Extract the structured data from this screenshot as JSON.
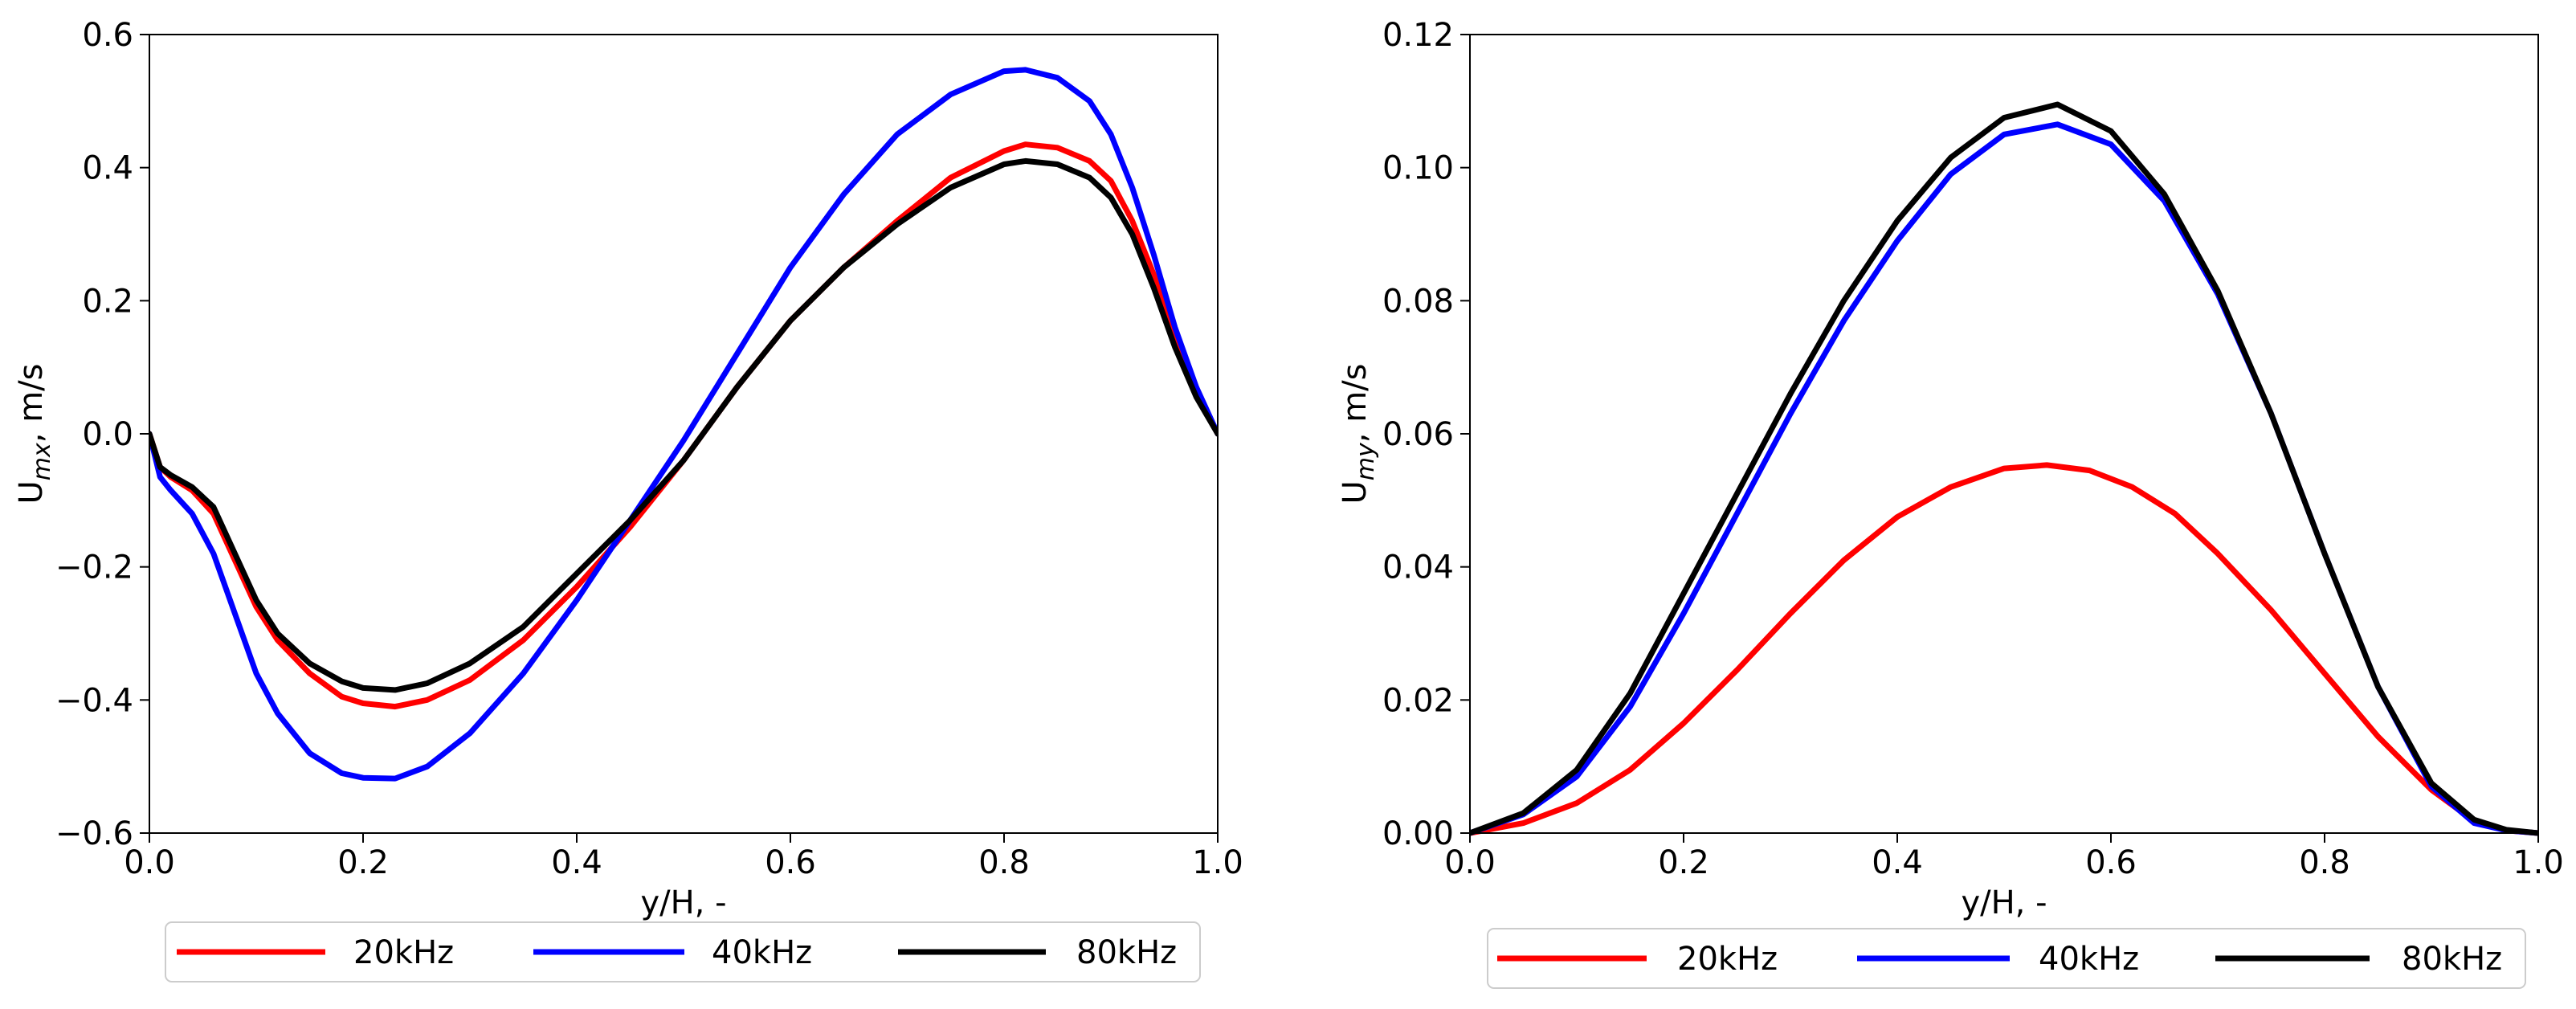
{
  "colors": {
    "20kHz": "#ff0000",
    "40kHz": "#0000ff",
    "80kHz": "#000000"
  },
  "chart_data": [
    {
      "type": "line",
      "xlabel": "y/H, -",
      "ylabel_main": "U",
      "ylabel_sub": "mx",
      "ylabel_rest": ", m/s",
      "xlim": [
        0.0,
        1.0
      ],
      "ylim": [
        -0.6,
        0.6
      ],
      "xticks": [
        0.0,
        0.2,
        0.4,
        0.6,
        0.8,
        1.0
      ],
      "xtick_labels": [
        "0.0",
        "0.2",
        "0.4",
        "0.6",
        "0.8",
        "1.0"
      ],
      "yticks": [
        -0.6,
        -0.4,
        -0.2,
        0.0,
        0.2,
        0.4,
        0.6
      ],
      "ytick_labels": [
        "−0.6",
        "−0.4",
        "−0.2",
        "0.0",
        "0.2",
        "0.4",
        "0.6"
      ],
      "legend": [
        "20kHz",
        "40kHz",
        "80kHz"
      ],
      "series": [
        {
          "name": "20kHz",
          "color": "#ff0000",
          "x": [
            0,
            0.01,
            0.02,
            0.04,
            0.06,
            0.08,
            0.1,
            0.12,
            0.15,
            0.18,
            0.2,
            0.23,
            0.26,
            0.3,
            0.35,
            0.4,
            0.45,
            0.5,
            0.55,
            0.6,
            0.65,
            0.7,
            0.75,
            0.8,
            0.82,
            0.85,
            0.88,
            0.9,
            0.92,
            0.94,
            0.96,
            0.98,
            1.0
          ],
          "y": [
            0,
            -0.05,
            -0.065,
            -0.085,
            -0.12,
            -0.19,
            -0.26,
            -0.31,
            -0.36,
            -0.395,
            -0.405,
            -0.41,
            -0.4,
            -0.37,
            -0.31,
            -0.23,
            -0.14,
            -0.04,
            0.07,
            0.17,
            0.25,
            0.32,
            0.385,
            0.425,
            0.435,
            0.43,
            0.41,
            0.38,
            0.32,
            0.24,
            0.14,
            0.06,
            0
          ]
        },
        {
          "name": "40kHz",
          "color": "#0000ff",
          "x": [
            0,
            0.01,
            0.02,
            0.04,
            0.06,
            0.08,
            0.1,
            0.12,
            0.15,
            0.18,
            0.2,
            0.23,
            0.26,
            0.3,
            0.35,
            0.4,
            0.45,
            0.5,
            0.55,
            0.6,
            0.65,
            0.7,
            0.75,
            0.8,
            0.82,
            0.85,
            0.88,
            0.9,
            0.92,
            0.94,
            0.96,
            0.98,
            1.0
          ],
          "y": [
            0,
            -0.065,
            -0.085,
            -0.12,
            -0.18,
            -0.27,
            -0.36,
            -0.42,
            -0.48,
            -0.51,
            -0.517,
            -0.518,
            -0.5,
            -0.45,
            -0.36,
            -0.25,
            -0.13,
            -0.01,
            0.12,
            0.25,
            0.36,
            0.45,
            0.51,
            0.545,
            0.547,
            0.535,
            0.5,
            0.45,
            0.37,
            0.27,
            0.16,
            0.07,
            0
          ]
        },
        {
          "name": "80kHz",
          "color": "#000000",
          "x": [
            0,
            0.01,
            0.02,
            0.04,
            0.06,
            0.08,
            0.1,
            0.12,
            0.15,
            0.18,
            0.2,
            0.23,
            0.26,
            0.3,
            0.35,
            0.4,
            0.45,
            0.5,
            0.55,
            0.6,
            0.65,
            0.7,
            0.75,
            0.8,
            0.82,
            0.85,
            0.88,
            0.9,
            0.92,
            0.94,
            0.96,
            0.98,
            1.0
          ],
          "y": [
            0,
            -0.05,
            -0.062,
            -0.08,
            -0.11,
            -0.18,
            -0.25,
            -0.3,
            -0.345,
            -0.372,
            -0.382,
            -0.385,
            -0.375,
            -0.345,
            -0.29,
            -0.21,
            -0.13,
            -0.04,
            0.07,
            0.17,
            0.25,
            0.315,
            0.37,
            0.405,
            0.41,
            0.405,
            0.385,
            0.355,
            0.3,
            0.22,
            0.13,
            0.055,
            0
          ]
        }
      ]
    },
    {
      "type": "line",
      "xlabel": "y/H, -",
      "ylabel_main": "U",
      "ylabel_sub": "my",
      "ylabel_rest": ", m/s",
      "xlim": [
        0.0,
        1.0
      ],
      "ylim": [
        0.0,
        0.12
      ],
      "xticks": [
        0.0,
        0.2,
        0.4,
        0.6,
        0.8,
        1.0
      ],
      "xtick_labels": [
        "0.0",
        "0.2",
        "0.4",
        "0.6",
        "0.8",
        "1.0"
      ],
      "yticks": [
        0.0,
        0.02,
        0.04,
        0.06,
        0.08,
        0.1,
        0.12
      ],
      "ytick_labels": [
        "0.00",
        "0.02",
        "0.04",
        "0.06",
        "0.08",
        "0.10",
        "0.12"
      ],
      "legend": [
        "20kHz",
        "40kHz",
        "80kHz"
      ],
      "series": [
        {
          "name": "20kHz",
          "color": "#ff0000",
          "x": [
            0,
            0.05,
            0.1,
            0.15,
            0.2,
            0.25,
            0.3,
            0.35,
            0.4,
            0.45,
            0.5,
            0.54,
            0.58,
            0.62,
            0.66,
            0.7,
            0.75,
            0.8,
            0.85,
            0.9,
            0.94,
            0.97,
            1.0
          ],
          "y": [
            0,
            0.0015,
            0.0045,
            0.0095,
            0.0165,
            0.0245,
            0.033,
            0.041,
            0.0475,
            0.052,
            0.0548,
            0.0553,
            0.0545,
            0.052,
            0.048,
            0.042,
            0.0335,
            0.024,
            0.0145,
            0.0065,
            0.0018,
            0.0004,
            0
          ]
        },
        {
          "name": "40kHz",
          "color": "#0000ff",
          "x": [
            0,
            0.05,
            0.1,
            0.15,
            0.2,
            0.25,
            0.3,
            0.35,
            0.4,
            0.45,
            0.5,
            0.55,
            0.6,
            0.65,
            0.7,
            0.75,
            0.8,
            0.85,
            0.9,
            0.94,
            0.97,
            1.0
          ],
          "y": [
            0,
            0.0028,
            0.0085,
            0.019,
            0.033,
            0.048,
            0.063,
            0.077,
            0.089,
            0.099,
            0.105,
            0.1065,
            0.1035,
            0.095,
            0.081,
            0.063,
            0.042,
            0.022,
            0.007,
            0.0015,
            0.0004,
            0
          ]
        },
        {
          "name": "80kHz",
          "color": "#000000",
          "x": [
            0,
            0.05,
            0.1,
            0.15,
            0.2,
            0.25,
            0.3,
            0.35,
            0.4,
            0.45,
            0.5,
            0.55,
            0.6,
            0.65,
            0.7,
            0.75,
            0.8,
            0.85,
            0.9,
            0.94,
            0.97,
            1.0
          ],
          "y": [
            0,
            0.003,
            0.0095,
            0.021,
            0.036,
            0.051,
            0.066,
            0.08,
            0.092,
            0.1015,
            0.1075,
            0.1095,
            0.1055,
            0.096,
            0.0815,
            0.063,
            0.042,
            0.022,
            0.0075,
            0.002,
            0.0005,
            0
          ]
        }
      ]
    }
  ]
}
